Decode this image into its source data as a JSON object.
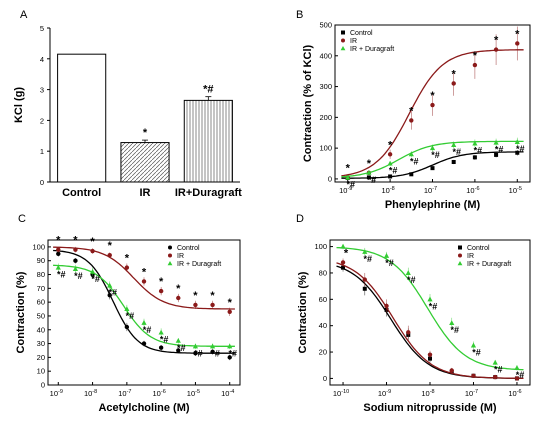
{
  "chart_data": [
    {
      "panel": "A",
      "type": "bar",
      "categories": [
        "Control",
        "IR",
        "IR+Duragraft"
      ],
      "values": [
        4.15,
        1.28,
        2.65
      ],
      "errors": [
        0.0,
        0.08,
        0.12
      ],
      "annotations": [
        "",
        "*",
        "*#"
      ],
      "patterns": [
        "solid",
        "diagonal",
        "vertical"
      ],
      "ylabel": "KCl (g)",
      "xlabel": "",
      "ylim": [
        0,
        5
      ],
      "yticks": [
        "0",
        "1",
        "2",
        "3",
        "4",
        "5"
      ]
    },
    {
      "panel": "B",
      "type": "scatter",
      "xlabel": "Phenylephrine (M)",
      "ylabel": "Contraction (% of KCl)",
      "x_log": true,
      "xlim_exp": [
        -9.3,
        -4.7
      ],
      "ylim": [
        -10,
        500
      ],
      "xticks_exp": [
        -9,
        -8,
        -7,
        -6,
        -5
      ],
      "xtick_labels": [
        "10",
        "10",
        "10",
        "10",
        "10"
      ],
      "xtick_exps": [
        "-9",
        "-8",
        "-7",
        "-6",
        "-5"
      ],
      "yticks": [
        "0",
        "100",
        "200",
        "300",
        "400",
        "500"
      ],
      "legend": [
        "Control",
        "IR",
        "IR + Duragraft"
      ],
      "legend_position": "top-left",
      "series": [
        {
          "name": "Control",
          "color": "#000000",
          "marker": "square",
          "x_exp": [
            -9,
            -8.5,
            -8,
            -7.5,
            -7,
            -6.5,
            -6,
            -5.5,
            -5
          ],
          "y": [
            3,
            5,
            8,
            15,
            35,
            55,
            70,
            78,
            85
          ],
          "err": [
            2,
            2,
            3,
            4,
            6,
            7,
            8,
            8,
            9
          ],
          "fit": {
            "bottom": 2,
            "top": 88,
            "ec50_exp": -7.0,
            "hill": 1.2
          }
        },
        {
          "name": "IR",
          "color": "#8b1a1a",
          "marker": "circle",
          "x_exp": [
            -9,
            -8.5,
            -8,
            -7.5,
            -7,
            -6.5,
            -6,
            -5.5,
            -5
          ],
          "y": [
            5,
            20,
            80,
            190,
            240,
            310,
            370,
            420,
            440
          ],
          "err": [
            3,
            6,
            15,
            30,
            35,
            40,
            45,
            50,
            55
          ],
          "fit": {
            "bottom": 3,
            "top": 420,
            "ec50_exp": -7.55,
            "hill": 1.1
          },
          "annotations": [
            "*",
            "*",
            "*",
            "*",
            "*",
            "*",
            "*",
            "*",
            "*"
          ]
        },
        {
          "name": "IR + Duragraft",
          "color": "#33cc33",
          "marker": "triangle",
          "x_exp": [
            -9,
            -8.5,
            -8,
            -7.5,
            -7,
            -6.5,
            -6,
            -5.5,
            -5
          ],
          "y": [
            4,
            20,
            50,
            80,
            100,
            110,
            115,
            118,
            120
          ],
          "err": [
            2,
            5,
            8,
            10,
            12,
            12,
            13,
            13,
            14
          ],
          "fit": {
            "bottom": 3,
            "top": 122,
            "ec50_exp": -7.8,
            "hill": 1.1
          },
          "annotations": [
            "*#",
            "*#",
            "*#",
            "*#",
            "*#",
            "*#",
            "*#",
            "*#",
            "*#"
          ]
        }
      ]
    },
    {
      "panel": "C",
      "type": "scatter",
      "xlabel": "Acetylcholine (M)",
      "ylabel": "Contraction (%)",
      "x_log": true,
      "xlim_exp": [
        -9.3,
        -3.7
      ],
      "ylim": [
        0,
        105
      ],
      "xticks_exp": [
        -9,
        -8,
        -7,
        -6,
        -5,
        -4
      ],
      "xtick_labels": [
        "10",
        "10",
        "10",
        "10",
        "10",
        "10"
      ],
      "xtick_exps": [
        "-9",
        "-8",
        "-7",
        "-6",
        "-5",
        "-4"
      ],
      "yticks": [
        "0",
        "10",
        "20",
        "30",
        "40",
        "50",
        "60",
        "70",
        "80",
        "90",
        "100"
      ],
      "legend": [
        "Control",
        "IR",
        "IR + Duragraft"
      ],
      "legend_position": "top-right",
      "series": [
        {
          "name": "Control",
          "color": "#000000",
          "marker": "circle",
          "x_exp": [
            -9,
            -8.5,
            -8,
            -7.5,
            -7,
            -6.5,
            -6,
            -5.5,
            -5,
            -4.5,
            -4
          ],
          "y": [
            95,
            90,
            80,
            65,
            42,
            30,
            27,
            25,
            23,
            24,
            20
          ],
          "err": [
            2,
            2,
            3,
            3,
            3,
            2,
            2,
            2,
            2,
            2,
            2
          ],
          "fit": {
            "bottom": 23,
            "top": 98,
            "ec50_exp": -7.4,
            "hill": 1.2
          }
        },
        {
          "name": "IR",
          "color": "#8b1a1a",
          "marker": "circle",
          "x_exp": [
            -9,
            -8.5,
            -8,
            -7.5,
            -7,
            -6.5,
            -6,
            -5.5,
            -5,
            -4.5,
            -4
          ],
          "y": [
            98,
            98,
            97,
            94,
            85,
            75,
            68,
            63,
            58,
            58,
            53
          ],
          "err": [
            2,
            2,
            2,
            2,
            3,
            3,
            3,
            3,
            3,
            3,
            3
          ],
          "fit": {
            "bottom": 55,
            "top": 100,
            "ec50_exp": -6.8,
            "hill": 1.0
          },
          "annotations": [
            "*",
            "*",
            "*",
            "*",
            "*",
            "*",
            "*",
            "*",
            "*",
            "*",
            "*"
          ]
        },
        {
          "name": "IR + Duragraft",
          "color": "#33cc33",
          "marker": "triangle",
          "x_exp": [
            -9,
            -8.5,
            -8,
            -7.5,
            -7,
            -6.5,
            -6,
            -5.5,
            -5,
            -4.5,
            -4
          ],
          "y": [
            85,
            84,
            82,
            72,
            55,
            45,
            38,
            32,
            28,
            28,
            28
          ],
          "err": [
            3,
            3,
            3,
            3,
            3,
            3,
            3,
            2,
            2,
            2,
            2
          ],
          "fit": {
            "bottom": 28,
            "top": 87,
            "ec50_exp": -7.1,
            "hill": 1.1
          },
          "annotations": [
            "*#",
            "*#",
            "*#",
            "*#",
            "*#",
            "*#",
            "*#",
            "*#",
            "*#",
            "*#",
            "*#"
          ]
        }
      ]
    },
    {
      "panel": "D",
      "type": "scatter",
      "xlabel": "Sodium nitroprusside (M)",
      "ylabel": "Contraction (%)",
      "x_log": true,
      "xlim_exp": [
        -10.3,
        -5.7
      ],
      "ylim": [
        -5,
        105
      ],
      "xticks_exp": [
        -10,
        -9,
        -8,
        -7,
        -6
      ],
      "xtick_labels": [
        "10",
        "10",
        "10",
        "10",
        "10"
      ],
      "xtick_exps": [
        "-10",
        "-9",
        "-8",
        "-7",
        "-6"
      ],
      "yticks": [
        "0",
        "20",
        "40",
        "60",
        "80",
        "100"
      ],
      "legend": [
        "Control",
        "IR",
        "IR + Duragraft"
      ],
      "legend_position": "top-right",
      "series": [
        {
          "name": "Control",
          "color": "#000000",
          "marker": "square",
          "x_exp": [
            -10,
            -9.5,
            -9,
            -8.5,
            -8,
            -7.5,
            -7,
            -6.5,
            -6
          ],
          "y": [
            84,
            68,
            52,
            33,
            15,
            5,
            2,
            1,
            0
          ],
          "err": [
            3,
            5,
            5,
            5,
            3,
            2,
            1,
            1,
            1
          ],
          "fit": {
            "bottom": 0,
            "top": 90,
            "ec50_exp": -8.9,
            "hill": 1.0
          }
        },
        {
          "name": "IR",
          "color": "#8b1a1a",
          "marker": "circle",
          "x_exp": [
            -10,
            -9.5,
            -9,
            -8.5,
            -8,
            -7.5,
            -7,
            -6.5,
            -6
          ],
          "y": [
            88,
            75,
            55,
            35,
            18,
            6,
            2,
            1,
            0
          ],
          "err": [
            3,
            5,
            5,
            5,
            3,
            2,
            1,
            1,
            1
          ],
          "fit": {
            "bottom": 0,
            "top": 92,
            "ec50_exp": -8.85,
            "hill": 1.0
          }
        },
        {
          "name": "IR + Duragraft",
          "color": "#33cc33",
          "marker": "triangle",
          "x_exp": [
            -10,
            -9.5,
            -9,
            -8.5,
            -8,
            -7.5,
            -7,
            -6.5,
            -6
          ],
          "y": [
            100,
            96,
            93,
            80,
            60,
            42,
            25,
            12,
            8
          ],
          "err": [
            2,
            3,
            3,
            4,
            4,
            4,
            3,
            2,
            2
          ],
          "fit": {
            "bottom": 6,
            "top": 100,
            "ec50_exp": -8.05,
            "hill": 1.0
          },
          "annotations": [
            "*",
            "*#",
            "*#",
            "*#",
            "*#",
            "*#",
            "*#",
            "*#",
            "*#"
          ]
        }
      ]
    }
  ]
}
